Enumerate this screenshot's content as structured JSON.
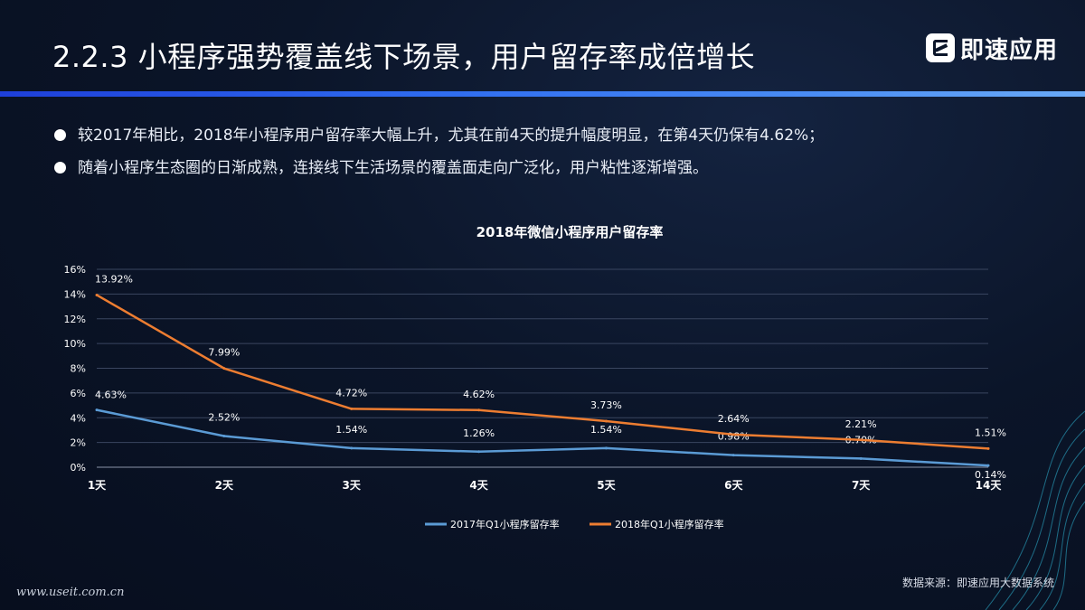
{
  "header": {
    "title": "2.2.3  小程序强势覆盖线下场景，用户留存率成倍增长",
    "logo_text": "即速应用"
  },
  "bullets": [
    "较2017年相比，2018年小程序用户留存率大幅上升，尤其在前4天的提升幅度明显，在第4天仍保有4.62%；",
    "随着小程序生态圈的日渐成熟，连接线下生活场景的覆盖面走向广泛化，用户粘性逐渐增强。"
  ],
  "chart_data": {
    "type": "line",
    "title": "2018年微信小程序用户留存率",
    "categories": [
      "1天",
      "2天",
      "3天",
      "4天",
      "5天",
      "6天",
      "7天",
      "14天"
    ],
    "series": [
      {
        "name": "2017年Q1小程序留存率",
        "values": [
          4.63,
          2.52,
          1.54,
          1.26,
          1.54,
          0.98,
          0.7,
          0.14
        ],
        "labels": [
          "4.63%",
          "2.52%",
          "1.54%",
          "1.26%",
          "1.54%",
          "0.98%",
          "0.70%",
          "0.14%"
        ],
        "color": "#5b9bd5"
      },
      {
        "name": "2018年Q1小程序留存率",
        "values": [
          13.92,
          7.99,
          4.72,
          4.62,
          3.73,
          2.64,
          2.21,
          1.51
        ],
        "labels": [
          "13.92%",
          "7.99%",
          "4.72%",
          "4.62%",
          "3.73%",
          "2.64%",
          "2.21%",
          "1.51%"
        ],
        "color": "#ed7d31"
      }
    ],
    "ylim": [
      0,
      16
    ],
    "yticks": [
      0,
      2,
      4,
      6,
      8,
      10,
      12,
      14,
      16
    ],
    "ytick_labels": [
      "0%",
      "2%",
      "4%",
      "6%",
      "8%",
      "10%",
      "12%",
      "14%",
      "16%"
    ],
    "grid": true,
    "legend": "bottom"
  },
  "source": "数据来源：即速应用大数据系统",
  "watermark": "www.useit.com.cn"
}
